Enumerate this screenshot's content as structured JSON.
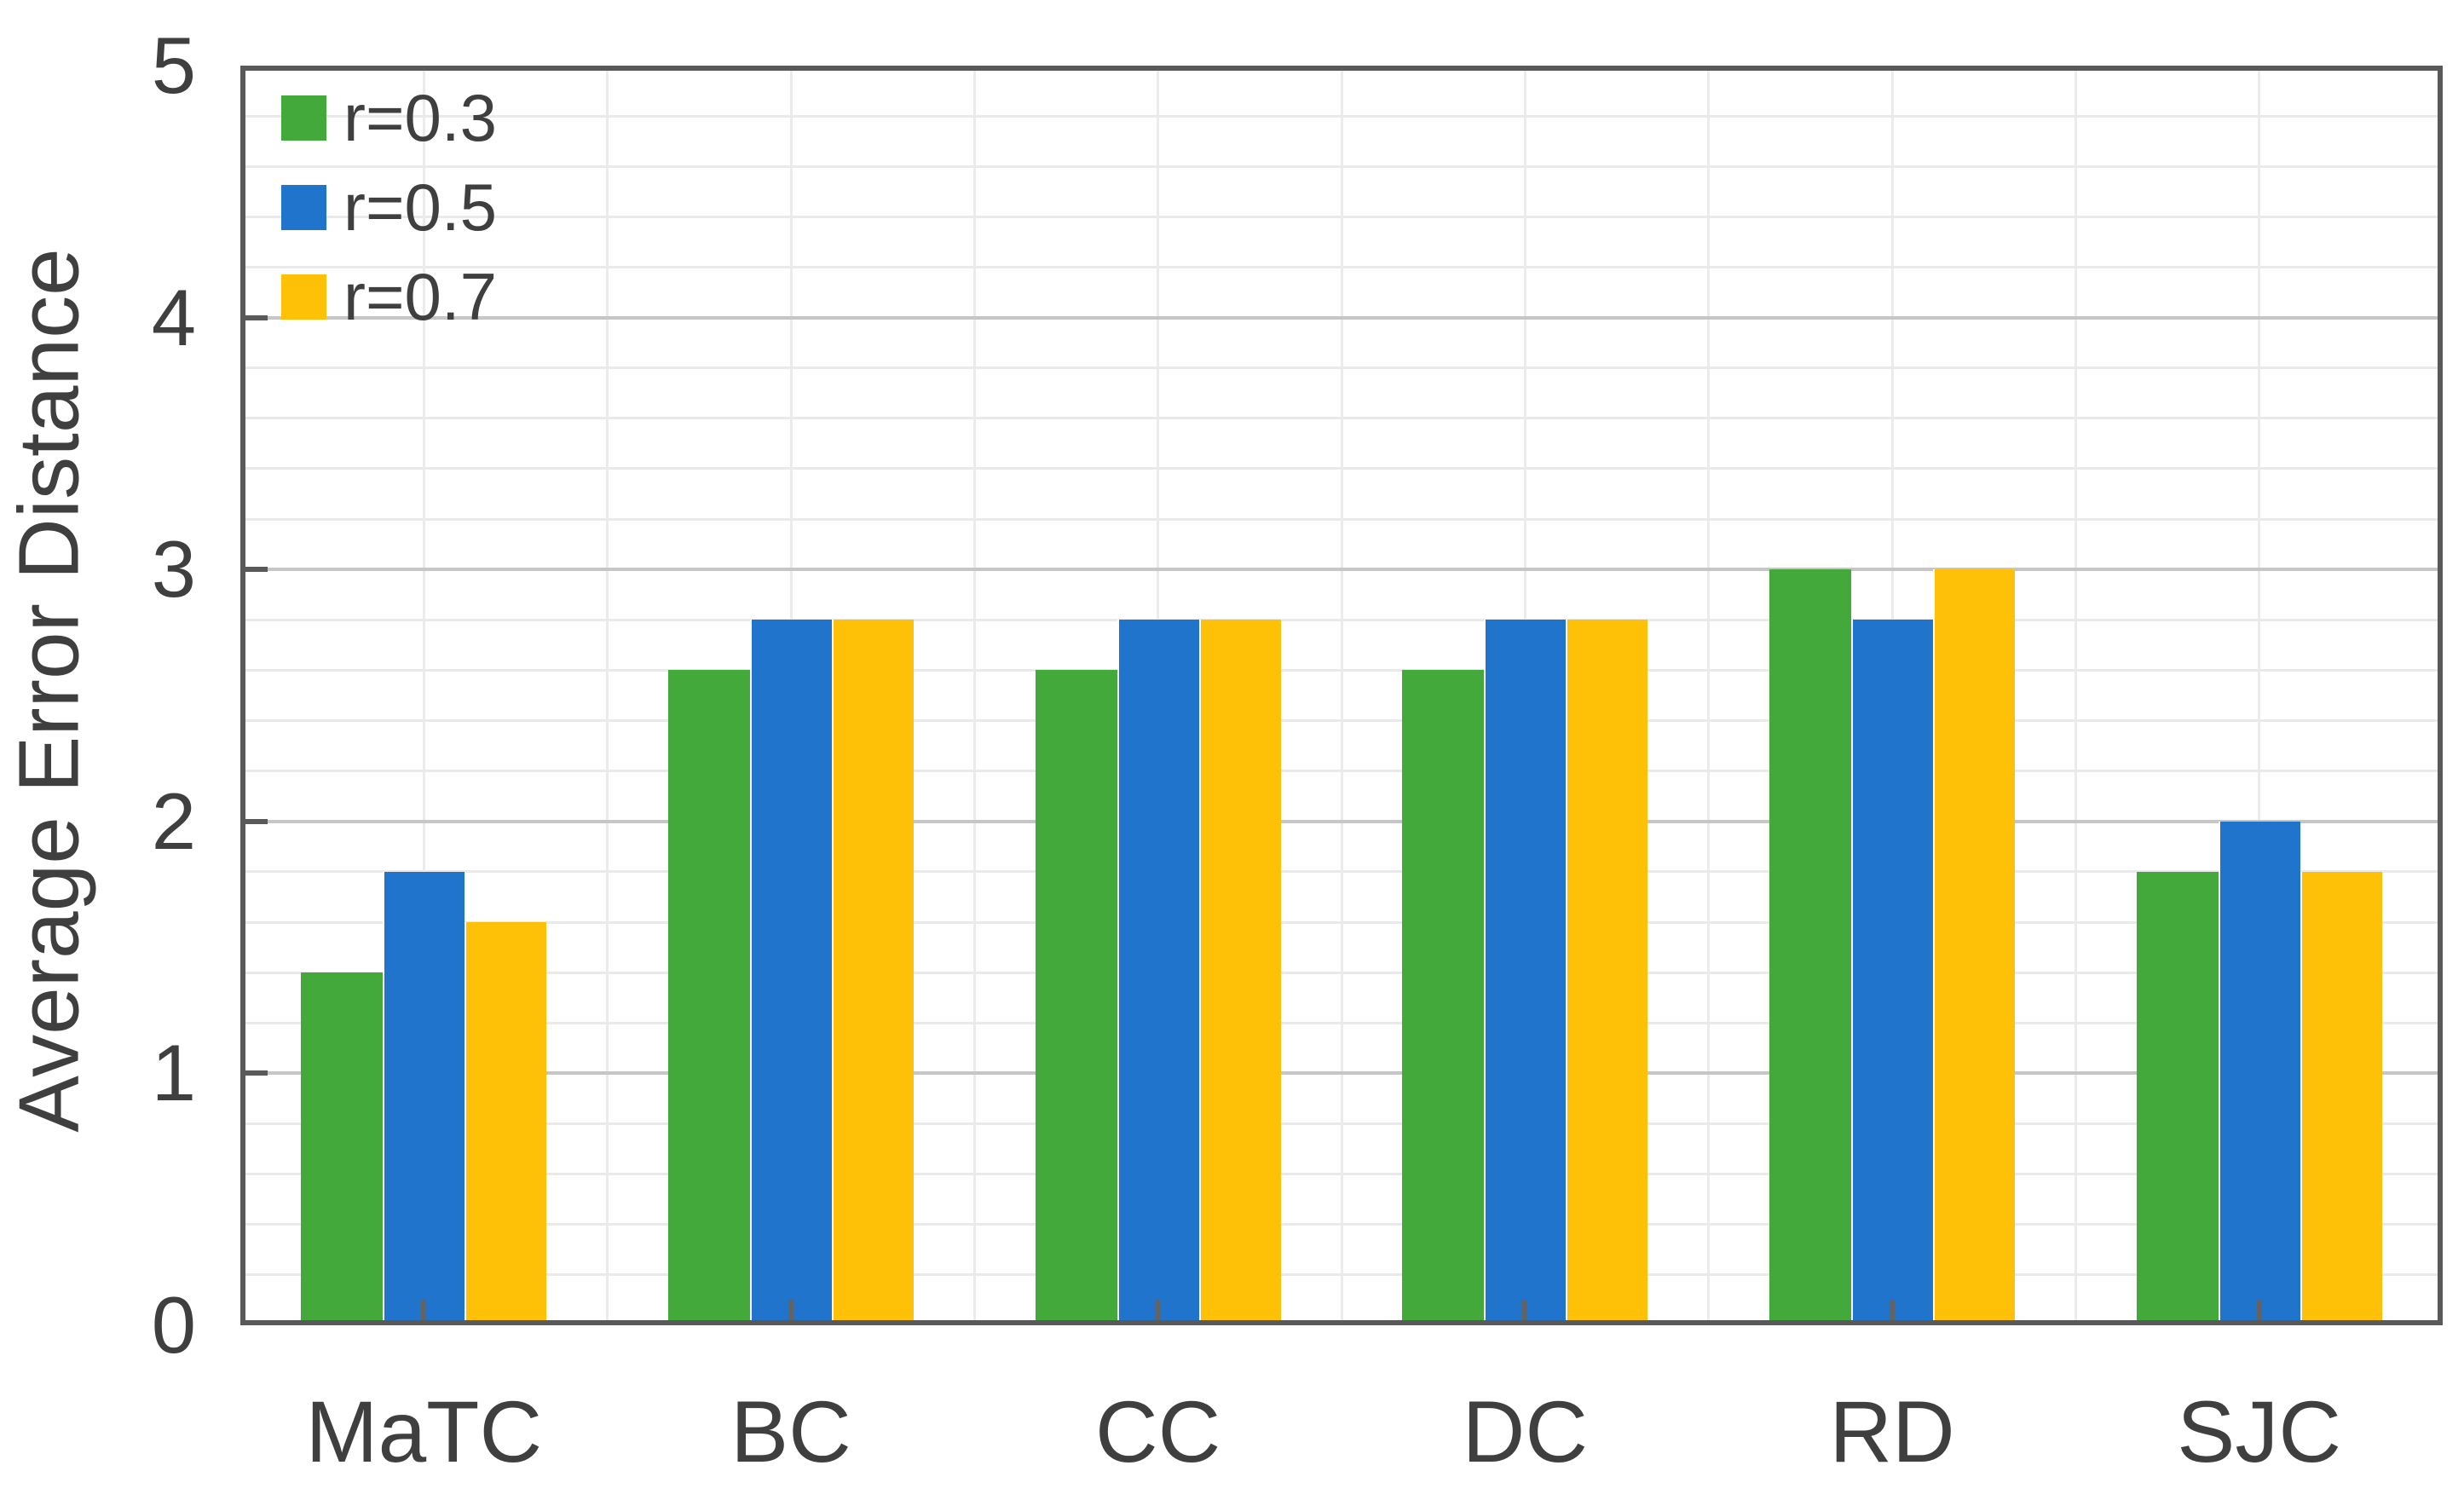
{
  "figure": {
    "background": "#ffffff"
  },
  "chart_data": {
    "type": "bar",
    "title": "",
    "categories": [
      "MaTC",
      "BC",
      "CC",
      "DC",
      "RD",
      "SJC"
    ],
    "series": [
      {
        "name": "r=0.3",
        "color": "#42A93A",
        "values": [
          1.4,
          2.6,
          2.6,
          2.6,
          3.0,
          1.8
        ]
      },
      {
        "name": "r=0.5",
        "color": "#2074CC",
        "values": [
          1.8,
          2.8,
          2.8,
          2.8,
          2.8,
          2.0
        ]
      },
      {
        "name": "r=0.7",
        "color": "#FFC008",
        "values": [
          1.6,
          2.8,
          2.8,
          2.8,
          3.0,
          1.8
        ]
      }
    ],
    "xlabel": "",
    "ylabel": "Average Error Distance",
    "ylim": [
      0,
      5
    ],
    "yticks": [
      0,
      1,
      2,
      3,
      4,
      5
    ],
    "y_tick_labels": [
      "0",
      "1",
      "2",
      "3",
      "4",
      "5"
    ],
    "y_minor_step": 0.2,
    "grid": {
      "h_major": true,
      "h_minor": true,
      "v_minor": true
    },
    "legend_position": "top-left"
  },
  "legend": {
    "items": [
      {
        "label": "r=0.3",
        "color": "#42A93A"
      },
      {
        "label": "r=0.5",
        "color": "#2074CC"
      },
      {
        "label": "r=0.7",
        "color": "#FFC008"
      }
    ]
  },
  "style_colors": {
    "axis": "#595959",
    "tick": "#595959",
    "text": "#3f3f3f",
    "grid_major": "#c6c6c6",
    "grid_minor": "#eaeaea",
    "bar_seam": "#ffffff"
  }
}
